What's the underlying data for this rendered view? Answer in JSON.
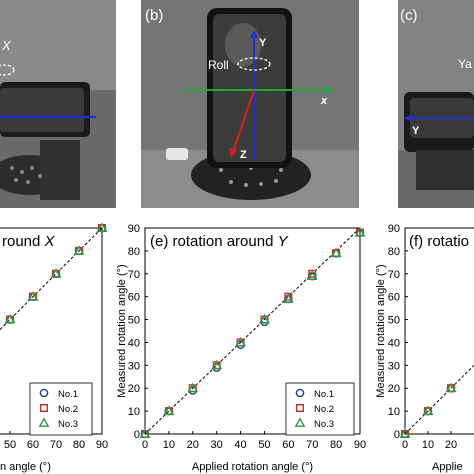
{
  "photos": {
    "a": {
      "axis_label": "X"
    },
    "b": {
      "panel_label": "(b)",
      "roll_label": "Roll",
      "axis_y": "Y",
      "axis_x": "x",
      "axis_z": "Z"
    },
    "c": {
      "panel_label": "(c)",
      "yaw_label": "Ya",
      "axis_y": "Y"
    }
  },
  "chart_data": [
    {
      "type": "scatter",
      "title": "round X",
      "title_italic_part": "X",
      "xlabel": "n angle (°)",
      "ylabel": "",
      "xticks": [
        "50",
        "60",
        "70",
        "80",
        "90"
      ],
      "yticks": [],
      "legend": [
        "No.1",
        "No.2",
        "No.3"
      ],
      "series": [
        {
          "name": "No.1",
          "x": [
            50,
            60,
            70,
            80,
            90
          ],
          "values": [
            50,
            60,
            70,
            80,
            90
          ]
        },
        {
          "name": "No.2",
          "x": [
            50,
            60,
            70,
            80,
            90
          ],
          "values": [
            50,
            60,
            70,
            80,
            90
          ]
        },
        {
          "name": "No.3",
          "x": [
            50,
            60,
            70,
            80,
            90
          ],
          "values": [
            50,
            60,
            70,
            80,
            90
          ]
        }
      ]
    },
    {
      "type": "scatter",
      "title": "(e) rotation around Y",
      "title_italic_part": "Y",
      "xlabel": "Applied rotation angle (°)",
      "ylabel": "Measured rotation angle (°)",
      "xticks": [
        "0",
        "10",
        "20",
        "30",
        "40",
        "50",
        "60",
        "70",
        "80",
        "90"
      ],
      "yticks": [
        "0",
        "10",
        "20",
        "30",
        "40",
        "50",
        "60",
        "70",
        "80",
        "90"
      ],
      "xlim": [
        0,
        90
      ],
      "ylim": [
        0,
        90
      ],
      "legend": [
        "No.1",
        "No.2",
        "No.3"
      ],
      "series": [
        {
          "name": "No.1",
          "x": [
            0,
            10,
            20,
            30,
            40,
            50,
            60,
            70,
            80,
            90
          ],
          "values": [
            0,
            10,
            19,
            29,
            39,
            49,
            59,
            69,
            79,
            88
          ]
        },
        {
          "name": "No.2",
          "x": [
            0,
            10,
            20,
            30,
            40,
            50,
            60,
            70,
            80,
            90
          ],
          "values": [
            0,
            10,
            20,
            30,
            40,
            50,
            60,
            70,
            79,
            88
          ]
        },
        {
          "name": "No.3",
          "x": [
            0,
            10,
            20,
            30,
            40,
            50,
            60,
            70,
            80,
            90
          ],
          "values": [
            0,
            10,
            20,
            30,
            40,
            50,
            59,
            69,
            79,
            88
          ]
        }
      ]
    },
    {
      "type": "scatter",
      "title": "(f) rotatio",
      "xlabel": "Applie",
      "ylabel": "Measured rotation angle (°)",
      "xticks": [
        "0",
        "10",
        "20"
      ],
      "yticks": [
        "0",
        "10",
        "20",
        "30",
        "40",
        "50",
        "60",
        "70",
        "80",
        "90"
      ],
      "ylim": [
        0,
        90
      ],
      "series": [
        {
          "name": "No.1",
          "x": [
            0,
            10,
            20
          ],
          "values": [
            0,
            10,
            20
          ]
        },
        {
          "name": "No.2",
          "x": [
            0,
            10,
            20
          ],
          "values": [
            0,
            10,
            20
          ]
        },
        {
          "name": "No.3",
          "x": [
            0,
            10,
            20
          ],
          "values": [
            0,
            10,
            20
          ]
        }
      ]
    }
  ],
  "colors": {
    "no1": "#1f3f9e",
    "no2": "#d42a2a",
    "no3": "#2a9a3a",
    "green_axis": "#1fa83a",
    "blue_axis": "#2232c8",
    "red_axis": "#d42222"
  }
}
